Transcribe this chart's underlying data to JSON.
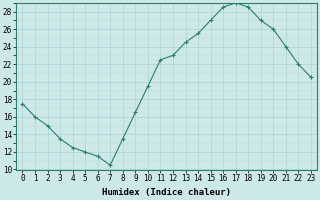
{
  "x": [
    0,
    1,
    2,
    3,
    4,
    5,
    6,
    7,
    8,
    9,
    10,
    11,
    12,
    13,
    14,
    15,
    16,
    17,
    18,
    19,
    20,
    21,
    22,
    23
  ],
  "y": [
    17.5,
    16.0,
    15.0,
    13.5,
    12.5,
    12.0,
    11.5,
    10.5,
    13.5,
    16.5,
    19.5,
    22.5,
    23.0,
    24.5,
    25.5,
    27.0,
    28.5,
    29.0,
    28.5,
    27.0,
    26.0,
    24.0,
    22.0,
    20.5
  ],
  "xlabel": "Humidex (Indice chaleur)",
  "ylim": [
    10,
    29
  ],
  "xlim": [
    -0.5,
    23.5
  ],
  "yticks": [
    10,
    12,
    14,
    16,
    18,
    20,
    22,
    24,
    26,
    28
  ],
  "xticks": [
    0,
    1,
    2,
    3,
    4,
    5,
    6,
    7,
    8,
    9,
    10,
    11,
    12,
    13,
    14,
    15,
    16,
    17,
    18,
    19,
    20,
    21,
    22,
    23
  ],
  "line_color": "#2e7d6e",
  "marker": "+",
  "bg_color": "#cce8e8",
  "grid_major_color": "#aad4d4",
  "grid_minor_color": "#bbdddd",
  "tick_fontsize": 5.5,
  "label_fontsize": 6.5
}
